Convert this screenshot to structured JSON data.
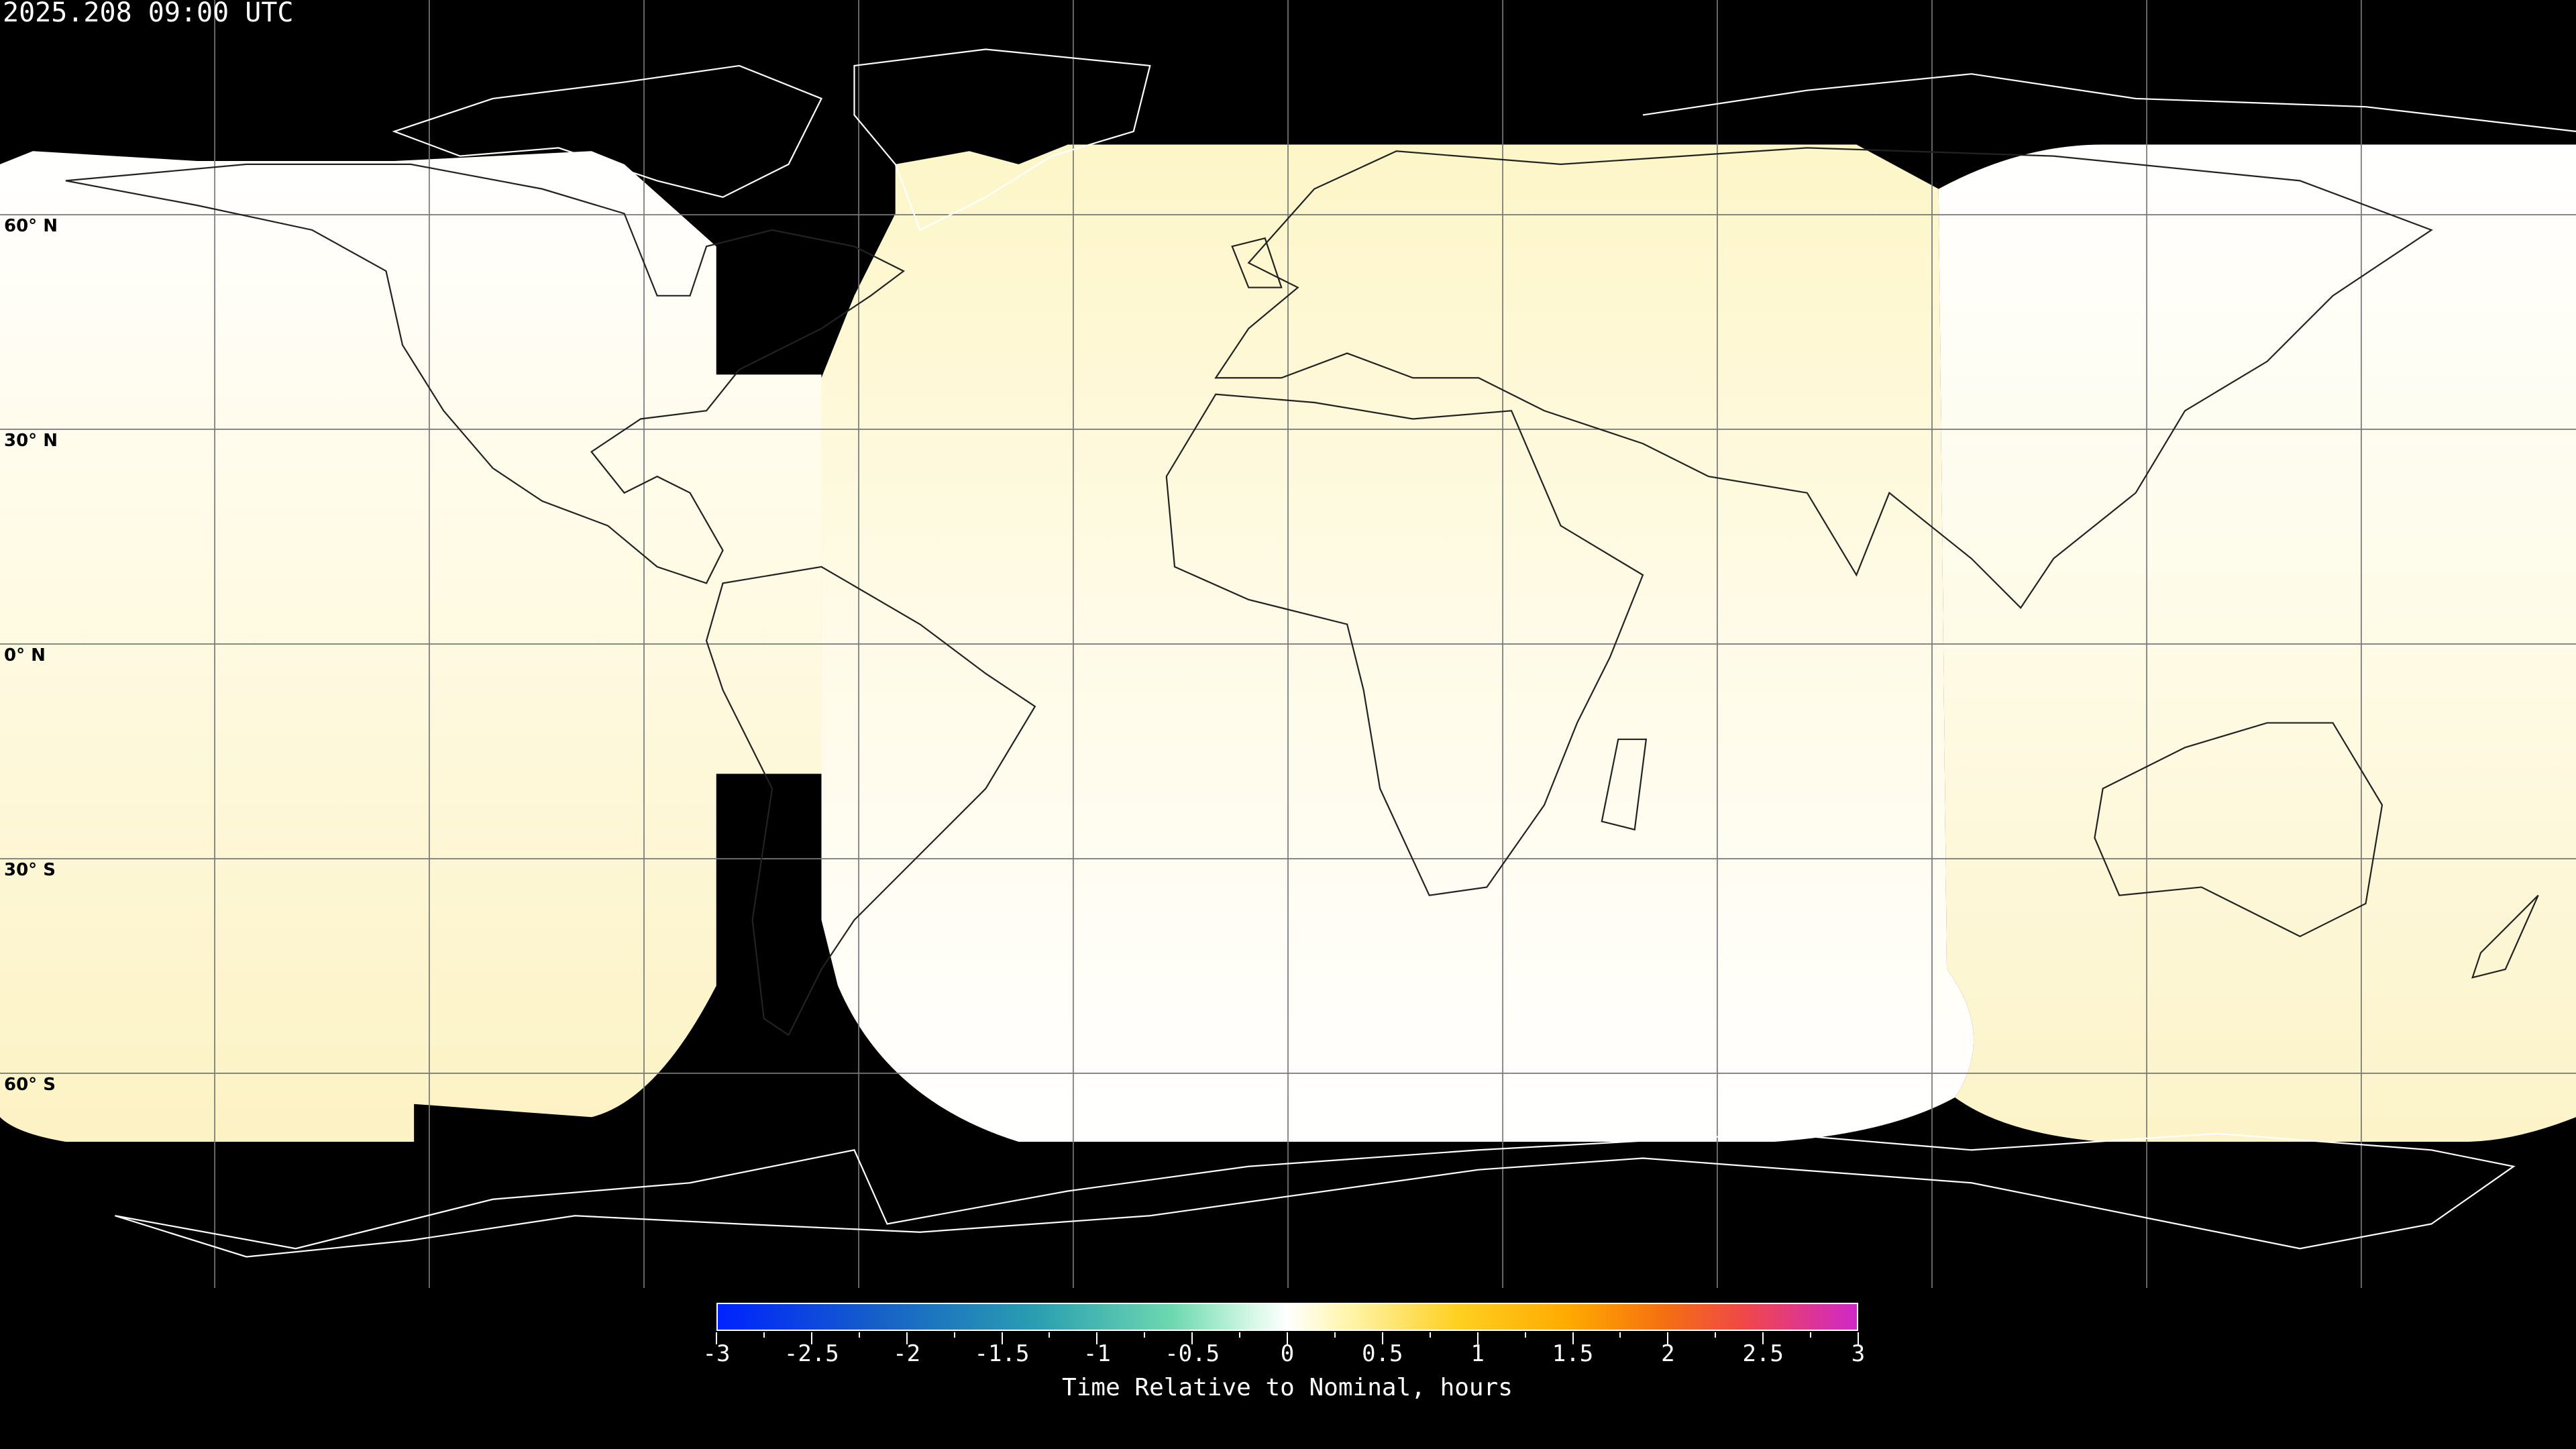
{
  "header": {
    "timestamp": "2025.208 09:00 UTC"
  },
  "map": {
    "projection": "equirectangular",
    "background_color": "#000000",
    "coastline_color_on_data": "#000000",
    "coastline_color_on_nodata": "#ffffff",
    "gridline_spacing_deg": 30,
    "lat_labels": [
      "60° N",
      "30° N",
      "0° N",
      "30° S",
      "60° S"
    ],
    "coverage_colors": {
      "near_zero": "#ffffff",
      "slightly_late": "#fdf6cc"
    }
  },
  "colorbar": {
    "title": "Time Relative to Nominal, hours",
    "min": -3,
    "max": 3,
    "tick_labels": [
      "-3",
      "-2.5",
      "-2",
      "-1.5",
      "-1",
      "-0.5",
      "0",
      "0.5",
      "1",
      "1.5",
      "2",
      "2.5",
      "3"
    ],
    "colors": [
      "#0022ff",
      "#2a9fb0",
      "#6ed9b0",
      "#ffffff",
      "#ffd020",
      "#f57010",
      "#d028c8"
    ]
  }
}
